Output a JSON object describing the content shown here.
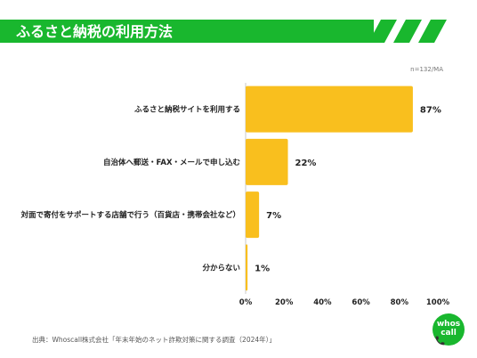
{
  "header": {
    "title": "ふるさと納税の利用方法",
    "accent_color": "#19b72e"
  },
  "sample_note": "n=132/MA",
  "source_note": "出典：Whoscall株式会社「年末年始のネット詐欺対策に関する調査（2024年）」",
  "logo": {
    "line1": "whos",
    "line2": "call",
    "icon": "phone-icon",
    "color": "#19b72e"
  },
  "chart_data": {
    "type": "bar",
    "orientation": "horizontal",
    "categories": [
      "ふるさと納税サイトを利用する",
      "自治体へ郵送・FAX・メールで申し込む",
      "対面で寄付をサポートする店舗で行う（百貨店・携帯会社など）",
      "分からない"
    ],
    "values": [
      87,
      22,
      7,
      1
    ],
    "value_labels": [
      "87%",
      "22%",
      "7%",
      "1%"
    ],
    "xlim": [
      0,
      100
    ],
    "x_ticks": [
      "0%",
      "20%",
      "40%",
      "60%",
      "80%",
      "100%"
    ],
    "bar_color": "#f9bf1e",
    "axis_color": "#c8c8c8",
    "grid": false
  }
}
